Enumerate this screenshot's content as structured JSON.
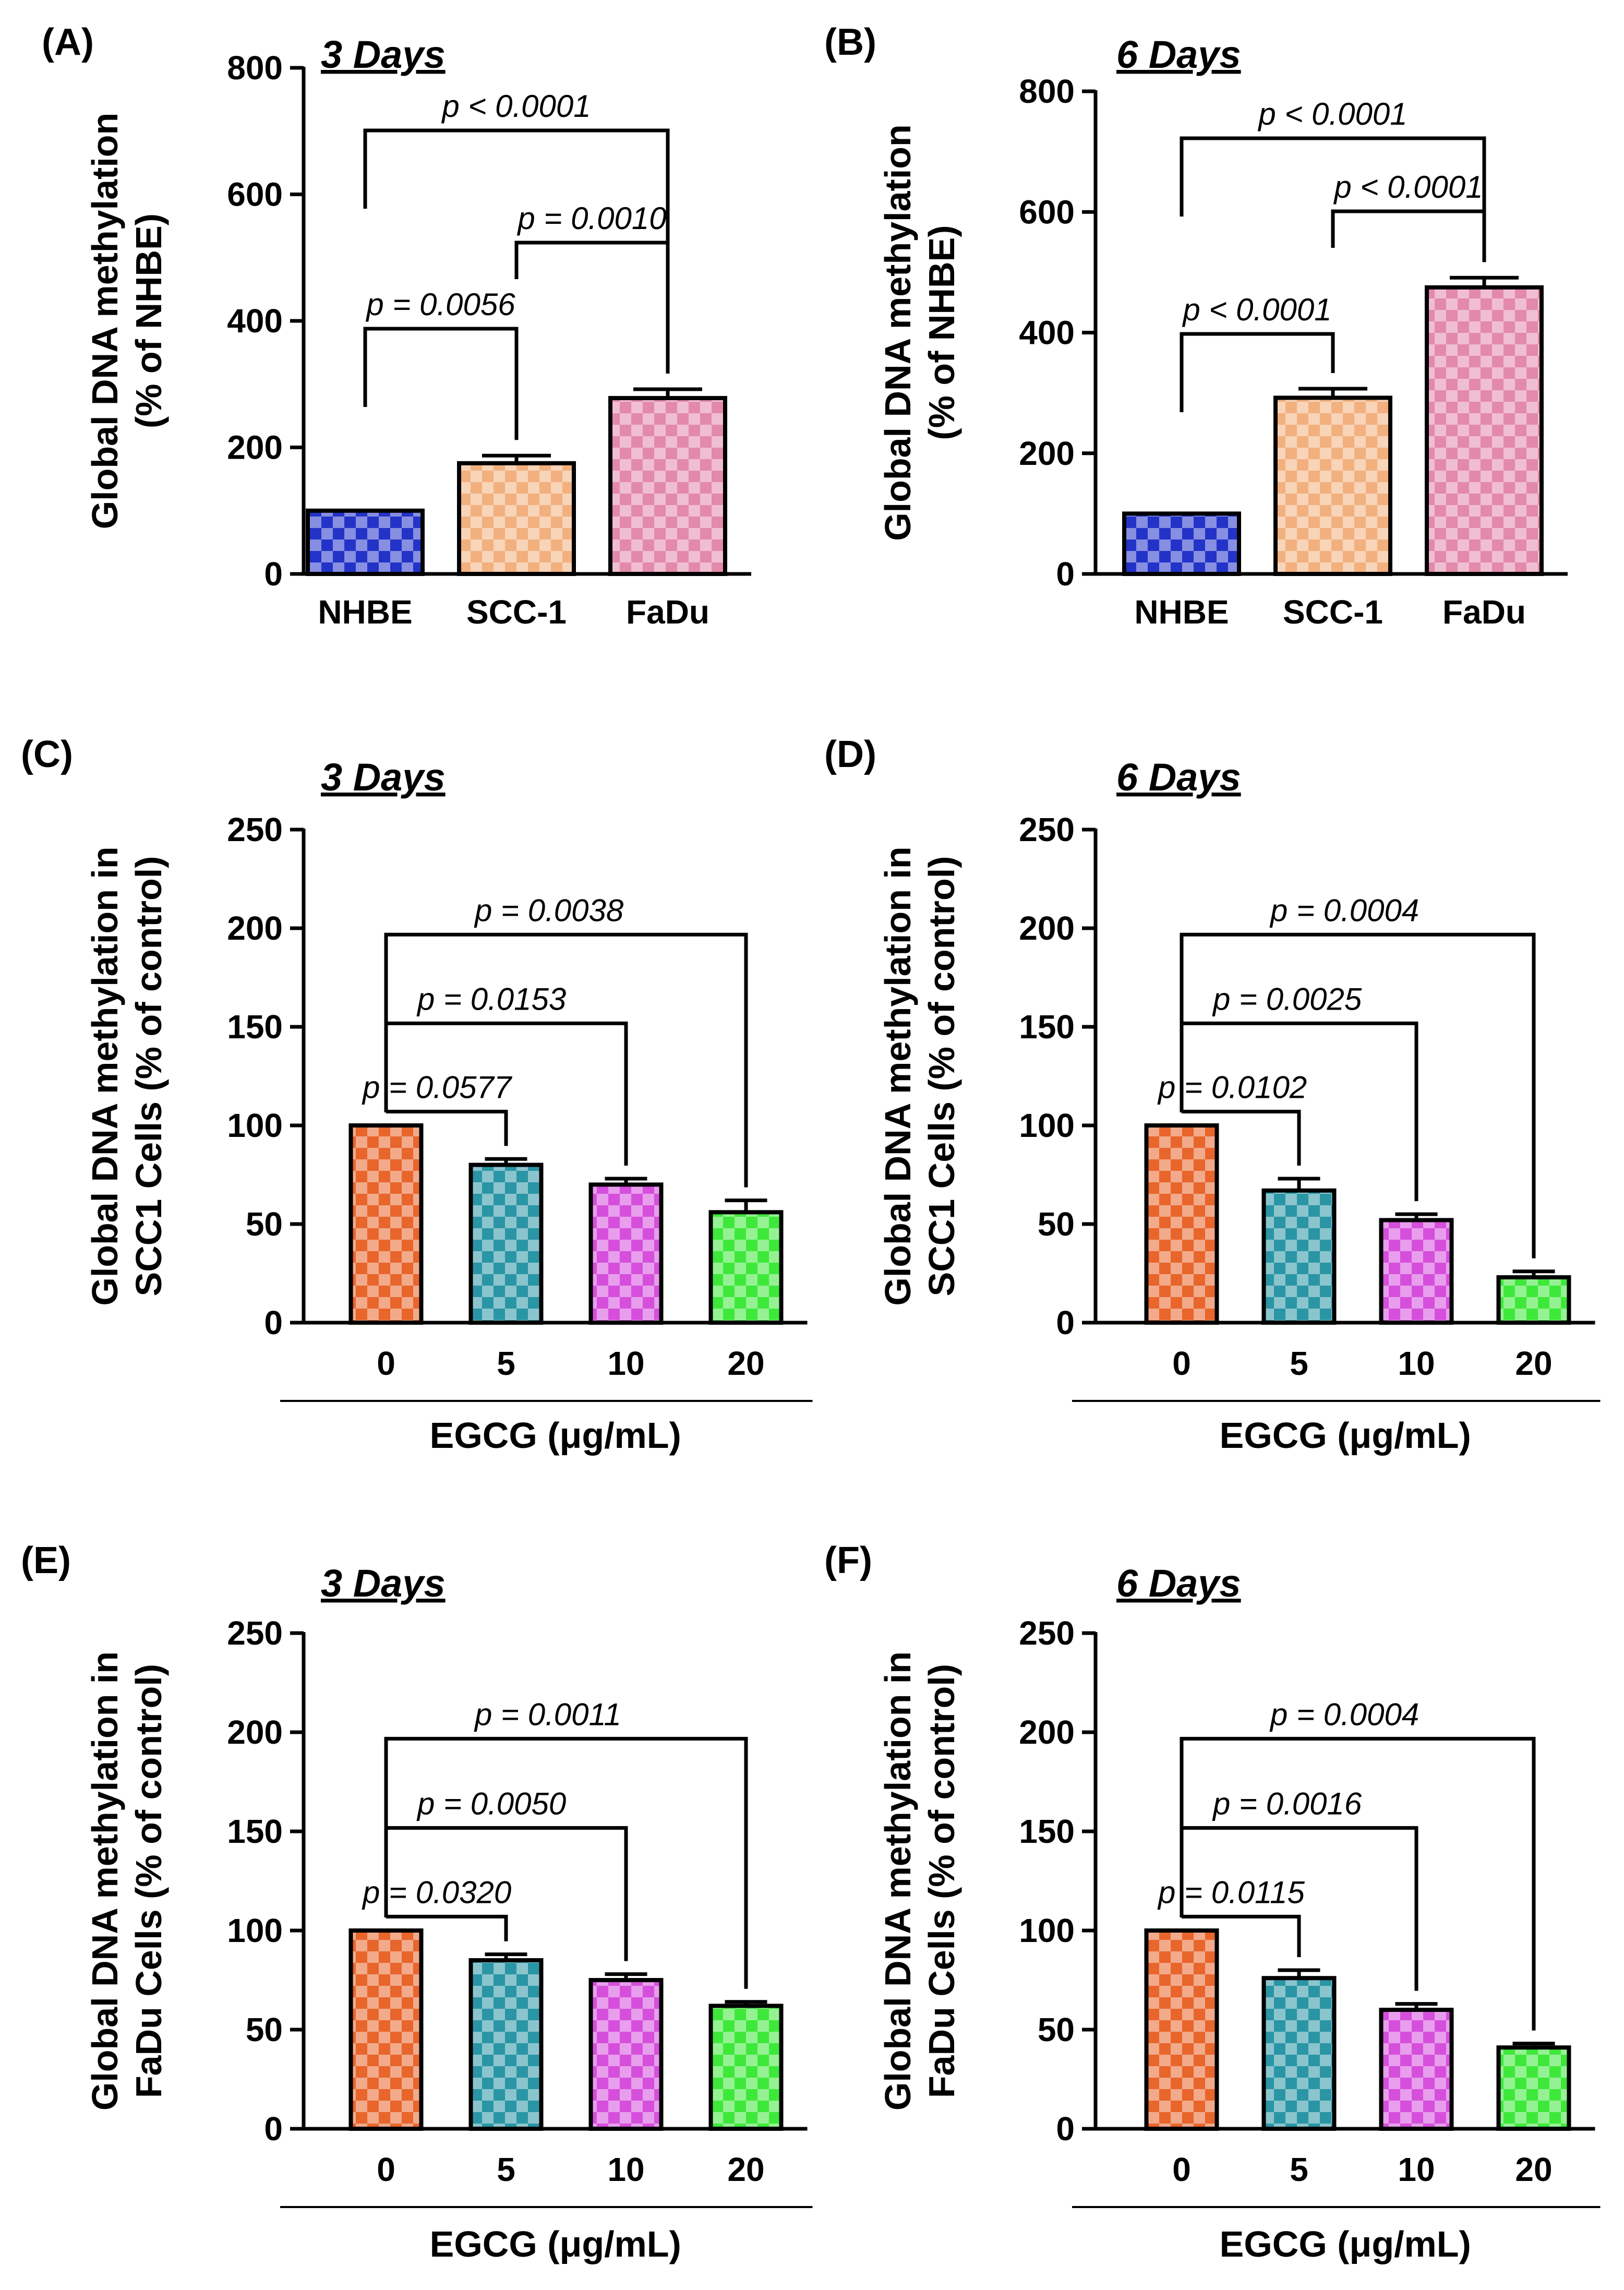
{
  "chart_data": [
    {
      "panel": "(A)",
      "type": "bar",
      "title": "3 Days",
      "ylabel_lines": [
        "Global DNA methylation",
        "(% of NHBE)"
      ],
      "xlabel": "",
      "ylim": [
        0,
        800
      ],
      "yticks": [
        "0",
        "200",
        "400",
        "600",
        "800"
      ],
      "ytick_values": [
        0,
        200,
        400,
        600,
        800
      ],
      "categories": [
        "NHBE",
        "SCC-1",
        "FaDu"
      ],
      "values": [
        100,
        175,
        278
      ],
      "errors": [
        0,
        12,
        14
      ],
      "bar_colors": [
        "#2333c8",
        "#f2b07e",
        "#e389ab"
      ],
      "comparisons": [
        {
          "from": 0,
          "to": 1,
          "label": "p = 0.0056"
        },
        {
          "from": 1,
          "to": 2,
          "label": "p = 0.0010"
        },
        {
          "from": 0,
          "to": 2,
          "label": "p < 0.0001"
        }
      ]
    },
    {
      "panel": "(B)",
      "type": "bar",
      "title": "6 Days",
      "ylabel_lines": [
        "Global DNA methylation",
        "(% of NHBE)"
      ],
      "xlabel": "",
      "ylim": [
        0,
        800
      ],
      "yticks": [
        "0",
        "200",
        "400",
        "600",
        "800"
      ],
      "ytick_values": [
        0,
        200,
        400,
        600,
        800
      ],
      "categories": [
        "NHBE",
        "SCC-1",
        "FaDu"
      ],
      "values": [
        100,
        292,
        475
      ],
      "errors": [
        0,
        15,
        16
      ],
      "bar_colors": [
        "#2333c8",
        "#f2b07e",
        "#e389ab"
      ],
      "comparisons": [
        {
          "from": 0,
          "to": 1,
          "label": "p < 0.0001"
        },
        {
          "from": 1,
          "to": 2,
          "label": "p < 0.0001"
        },
        {
          "from": 0,
          "to": 2,
          "label": "p < 0.0001"
        }
      ]
    },
    {
      "panel": "(C)",
      "type": "bar",
      "title": "3 Days",
      "ylabel_lines": [
        "Global DNA methylation in",
        "SCC1 Cells (% of control)"
      ],
      "xlabel": "EGCG (μg/mL)",
      "ylim": [
        0,
        250
      ],
      "yticks": [
        "0",
        "50",
        "100",
        "150",
        "200",
        "250"
      ],
      "ytick_values": [
        0,
        50,
        100,
        150,
        200,
        250
      ],
      "categories": [
        "0",
        "5",
        "10",
        "20"
      ],
      "values": [
        100,
        80,
        70,
        56
      ],
      "errors": [
        0,
        3,
        3,
        6
      ],
      "bar_colors": [
        "#e8652b",
        "#2a95a5",
        "#d64fdc",
        "#3ee83a"
      ],
      "comparisons": [
        {
          "from": 0,
          "to": 1,
          "label": "p = 0.0577"
        },
        {
          "from": 0,
          "to": 2,
          "label": "p = 0.0153"
        },
        {
          "from": 0,
          "to": 3,
          "label": "p = 0.0038"
        }
      ]
    },
    {
      "panel": "(D)",
      "type": "bar",
      "title": "6 Days",
      "ylabel_lines": [
        "Global DNA methylation in",
        "SCC1 Cells (% of control)"
      ],
      "xlabel": "EGCG (μg/mL)",
      "ylim": [
        0,
        250
      ],
      "yticks": [
        "0",
        "50",
        "100",
        "150",
        "200",
        "250"
      ],
      "ytick_values": [
        0,
        50,
        100,
        150,
        200,
        250
      ],
      "categories": [
        "0",
        "5",
        "10",
        "20"
      ],
      "values": [
        100,
        67,
        52,
        23
      ],
      "errors": [
        0,
        6,
        3,
        3
      ],
      "bar_colors": [
        "#e8652b",
        "#2a95a5",
        "#d64fdc",
        "#3ee83a"
      ],
      "comparisons": [
        {
          "from": 0,
          "to": 1,
          "label": "p = 0.0102"
        },
        {
          "from": 0,
          "to": 2,
          "label": "p = 0.0025"
        },
        {
          "from": 0,
          "to": 3,
          "label": "p = 0.0004"
        }
      ]
    },
    {
      "panel": "(E)",
      "type": "bar",
      "title": "3 Days",
      "ylabel_lines": [
        "Global DNA methylation in",
        "FaDu Cells (% of control)"
      ],
      "xlabel": "EGCG (μg/mL)",
      "ylim": [
        0,
        250
      ],
      "yticks": [
        "0",
        "50",
        "100",
        "150",
        "200",
        "250"
      ],
      "ytick_values": [
        0,
        50,
        100,
        150,
        200,
        250
      ],
      "categories": [
        "0",
        "5",
        "10",
        "20"
      ],
      "values": [
        100,
        85,
        75,
        62
      ],
      "errors": [
        0,
        3,
        3,
        2
      ],
      "bar_colors": [
        "#e8652b",
        "#2a95a5",
        "#d64fdc",
        "#3ee83a"
      ],
      "comparisons": [
        {
          "from": 0,
          "to": 1,
          "label": "p = 0.0320"
        },
        {
          "from": 0,
          "to": 2,
          "label": "p = 0.0050"
        },
        {
          "from": 0,
          "to": 3,
          "label": "p = 0.0011"
        }
      ]
    },
    {
      "panel": "(F)",
      "type": "bar",
      "title": "6 Days",
      "ylabel_lines": [
        "Global DNA methylation in",
        "FaDu Cells (% of control)"
      ],
      "xlabel": "EGCG (μg/mL)",
      "ylim": [
        0,
        250
      ],
      "yticks": [
        "0",
        "50",
        "100",
        "150",
        "200",
        "250"
      ],
      "ytick_values": [
        0,
        50,
        100,
        150,
        200,
        250
      ],
      "categories": [
        "0",
        "5",
        "10",
        "20"
      ],
      "values": [
        100,
        76,
        60,
        41
      ],
      "errors": [
        0,
        4,
        3,
        2
      ],
      "bar_colors": [
        "#e8652b",
        "#2a95a5",
        "#d64fdc",
        "#3ee83a"
      ],
      "comparisons": [
        {
          "from": 0,
          "to": 1,
          "label": "p = 0.0115"
        },
        {
          "from": 0,
          "to": 2,
          "label": "p = 0.0016"
        },
        {
          "from": 0,
          "to": 3,
          "label": "p = 0.0004"
        }
      ]
    }
  ]
}
